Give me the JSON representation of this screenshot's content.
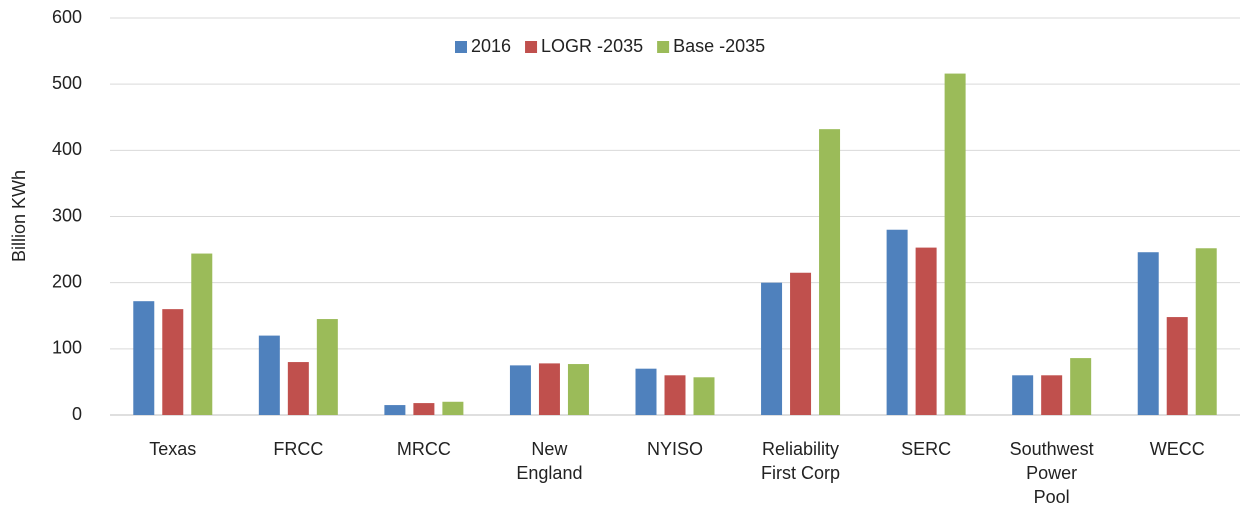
{
  "chart_data": {
    "type": "bar",
    "y_label": "Billion KWh",
    "categories": [
      "Texas",
      "FRCC",
      "MRCC",
      "New England",
      "NYISO",
      "Reliability First Corp",
      "SERC",
      "Southwest Power Pool",
      "WECC"
    ],
    "series": [
      {
        "name": "2016",
        "color": "#4f81bd",
        "values": [
          172,
          120,
          15,
          75,
          70,
          200,
          280,
          60,
          246
        ]
      },
      {
        "name": "LOGR -2035",
        "color": "#c0504d",
        "values": [
          160,
          80,
          18,
          78,
          60,
          215,
          253,
          60,
          148
        ]
      },
      {
        "name": "Base -2035",
        "color": "#9bbb59",
        "values": [
          244,
          145,
          20,
          77,
          57,
          432,
          516,
          86,
          252
        ]
      }
    ],
    "ylim": [
      0,
      600
    ],
    "yticks": [
      0,
      100,
      200,
      300,
      400,
      500,
      600
    ],
    "grid": true,
    "legend": "top"
  }
}
